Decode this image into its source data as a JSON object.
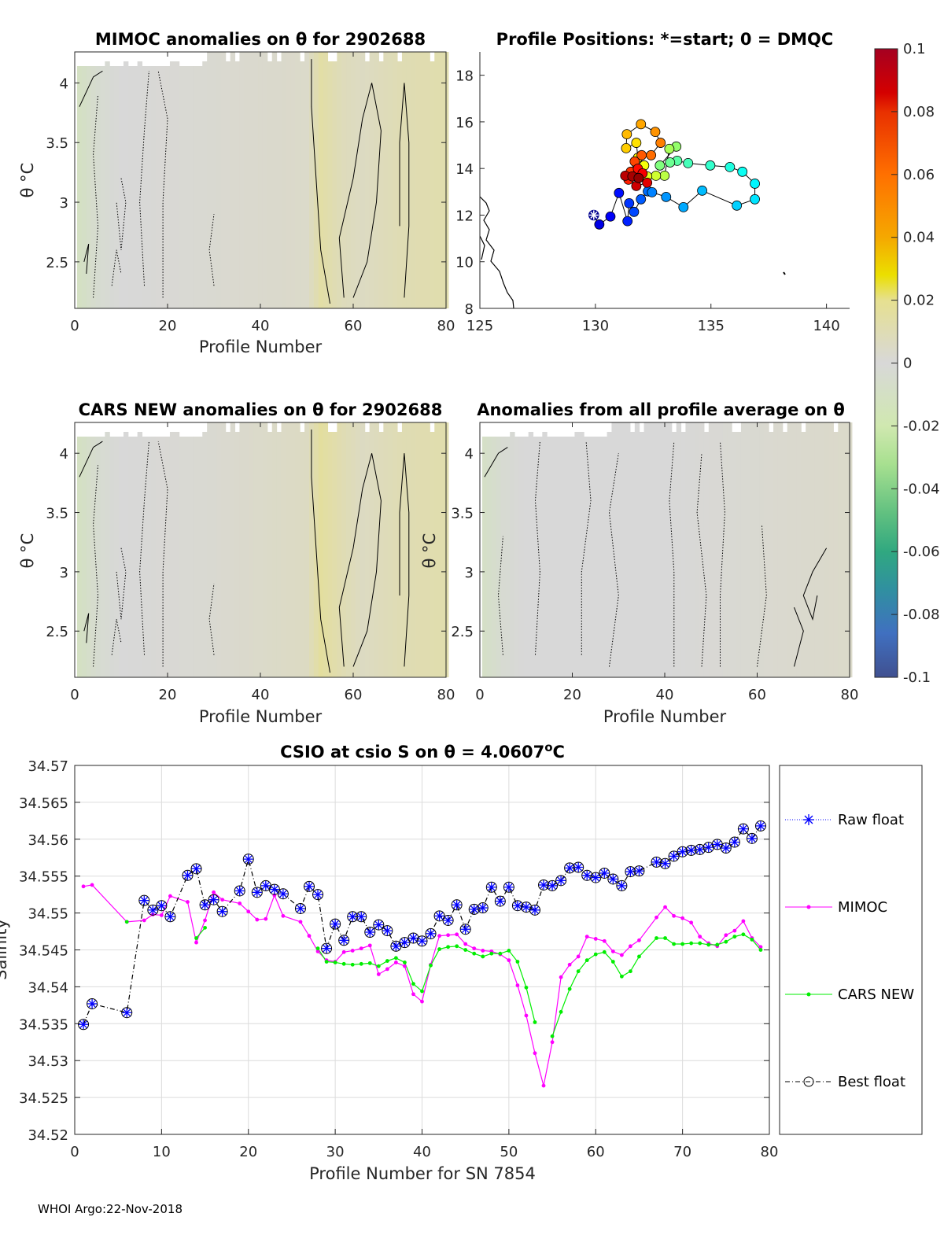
{
  "footer": "WHOI Argo:22-Nov-2018",
  "colors": {
    "mimoc": "#ff00ff",
    "cars": "#00ee00",
    "raw": "#0000ff",
    "best": "#000000"
  },
  "chart_data": [
    {
      "type": "heatmap",
      "title": "MIMOC anomalies on θ  for 2902688",
      "xlabel": "Profile Number",
      "ylabel": "θ °C",
      "xlim": [
        0,
        80
      ],
      "ylim": [
        2.11,
        4.26
      ],
      "xticks": [
        "0",
        "20",
        "40",
        "60",
        "80"
      ],
      "yticks": [
        "2.5",
        "3",
        "3.5",
        "4"
      ],
      "column_anomaly": [
        [
          0,
          -0.012
        ],
        [
          5,
          -0.004
        ],
        [
          10,
          0
        ],
        [
          30,
          0.002
        ],
        [
          50,
          0.004
        ],
        [
          53,
          0.014
        ],
        [
          58,
          0.008
        ],
        [
          62,
          0.006
        ],
        [
          70,
          0.01
        ],
        [
          80,
          0.012
        ]
      ]
    },
    {
      "type": "scatter",
      "title": "Profile Positions: *=start; 0 = DMQC",
      "xlim": [
        125,
        141
      ],
      "ylim": [
        8,
        19
      ],
      "xticks": [
        "125",
        "130",
        "135",
        "140"
      ],
      "yticks": [
        "8",
        "10",
        "12",
        "14",
        "16",
        "18"
      ],
      "lon": [
        129.93,
        130.17,
        130.65,
        131.02,
        131.39,
        131.46,
        131.67,
        131.97,
        132.27,
        132.45,
        133.06,
        133.81,
        134.62,
        136.12,
        136.9,
        136.9,
        136.36,
        135.82,
        134.97,
        134.01,
        133.54,
        133.23,
        132.79,
        133.5,
        133.2,
        132.99,
        132.62,
        132.24,
        132.11,
        131.84,
        131.77,
        131.33,
        131.36,
        131.97,
        132.59,
        132.82,
        132.41,
        132.0,
        131.7,
        131.53,
        131.43,
        131.84,
        132.04,
        132.24,
        131.77,
        131.29,
        131.6,
        131.87
      ],
      "lat": [
        12.0,
        11.6,
        11.94,
        12.95,
        11.74,
        12.51,
        12.14,
        12.68,
        13.02,
        12.98,
        12.78,
        12.34,
        13.05,
        12.41,
        12.68,
        13.35,
        13.86,
        14.06,
        14.13,
        14.23,
        14.33,
        14.26,
        14.13,
        14.94,
        14.84,
        13.69,
        13.69,
        13.66,
        14.13,
        14.46,
        15.1,
        14.87,
        15.47,
        15.9,
        15.57,
        15.1,
        14.57,
        14.57,
        14.3,
        13.86,
        13.52,
        13.99,
        13.79,
        13.39,
        13.25,
        13.69,
        13.66,
        13.59
      ]
    },
    {
      "type": "colorbar",
      "clim": [
        -0.1,
        0.1
      ],
      "ticks": [
        "0.1",
        "0.08",
        "0.06",
        "0.04",
        "0.02",
        "0",
        "-0.02",
        "-0.04",
        "-0.06",
        "-0.08",
        "-0.1"
      ]
    },
    {
      "type": "heatmap",
      "title": "CARS NEW anomalies on θ for 2902688",
      "xlabel": "Profile Number",
      "ylabel": "θ °C",
      "xlim": [
        0,
        80
      ],
      "ylim": [
        2.11,
        4.26
      ],
      "xticks": [
        "0",
        "20",
        "40",
        "60",
        "80"
      ],
      "yticks": [
        "2.5",
        "3",
        "3.5",
        "4"
      ],
      "column_anomaly": [
        [
          0,
          -0.012
        ],
        [
          5,
          -0.004
        ],
        [
          10,
          0
        ],
        [
          30,
          0.002
        ],
        [
          50,
          0.006
        ],
        [
          53,
          0.016
        ],
        [
          58,
          0.01
        ],
        [
          62,
          0.006
        ],
        [
          70,
          0.01
        ],
        [
          80,
          0.012
        ]
      ]
    },
    {
      "type": "heatmap",
      "title": "Anomalies from all profile average on θ",
      "xlabel": "Profile Number",
      "ylabel": "θ °C",
      "xlim": [
        0,
        80
      ],
      "ylim": [
        2.11,
        4.26
      ],
      "xticks": [
        "0",
        "20",
        "40",
        "60",
        "80"
      ],
      "yticks": [
        "2.5",
        "3",
        "3.5",
        "4"
      ],
      "column_anomaly": [
        [
          0,
          -0.01
        ],
        [
          5,
          -0.003
        ],
        [
          10,
          0
        ],
        [
          40,
          0
        ],
        [
          60,
          0.002
        ],
        [
          80,
          0.004
        ]
      ]
    },
    {
      "type": "line",
      "title": "CSIO at csio S on θ = 4.0607",
      "title_sup": "o",
      "title_unit": "C",
      "xlabel": "Profile Number for SN 7854",
      "ylabel": "Salinity",
      "xlim": [
        0,
        80
      ],
      "ylim": [
        34.52,
        34.57
      ],
      "xticks": [
        "0",
        "10",
        "20",
        "30",
        "40",
        "50",
        "60",
        "70",
        "80"
      ],
      "yticks": [
        "34.52",
        "34.525",
        "34.53",
        "34.535",
        "34.54",
        "34.545",
        "34.55",
        "34.555",
        "34.56",
        "34.565",
        "34.57"
      ],
      "grid": true,
      "legend": {
        "placement": "right-outside",
        "entries": [
          "Raw float",
          "MIMOC",
          "CARS NEW",
          "Best float"
        ]
      },
      "x": [
        1,
        2,
        6,
        8,
        9,
        10,
        11,
        13,
        14,
        15,
        16,
        17,
        19,
        20,
        21,
        22,
        23,
        24,
        26,
        27,
        28,
        29,
        30,
        31,
        32,
        33,
        34,
        35,
        36,
        37,
        38,
        39,
        40,
        41,
        42,
        43,
        44,
        45,
        46,
        47,
        48,
        49,
        50,
        51,
        52,
        53,
        54,
        55,
        56,
        57,
        58,
        59,
        60,
        61,
        62,
        63,
        64,
        65,
        67,
        68,
        69,
        70,
        71,
        72,
        73,
        74,
        75,
        76,
        77,
        78,
        79
      ],
      "series": [
        {
          "name": "Raw float / Best float",
          "values": [
            34.5349,
            34.5377,
            34.5365,
            34.5517,
            34.5504,
            34.551,
            34.5495,
            34.5551,
            34.556,
            34.5511,
            34.5518,
            34.5502,
            34.553,
            34.5573,
            34.5528,
            34.5537,
            34.5532,
            34.5526,
            34.5506,
            34.5536,
            34.5525,
            34.5452,
            34.5485,
            34.5463,
            34.5495,
            34.5495,
            34.5474,
            34.5484,
            34.5476,
            34.5455,
            34.546,
            34.5466,
            34.5462,
            34.5472,
            34.5496,
            34.549,
            34.5511,
            34.5478,
            34.5505,
            34.5507,
            34.5535,
            34.5516,
            34.5535,
            34.551,
            34.5508,
            34.5504,
            34.5538,
            34.5537,
            34.5544,
            34.5561,
            34.5562,
            34.5551,
            34.5548,
            34.5554,
            34.5546,
            34.5537,
            34.5556,
            34.5557,
            34.5569,
            34.5567,
            34.5577,
            34.5583,
            34.5585,
            34.5586,
            34.5589,
            34.5593,
            34.5588,
            34.5596,
            34.5614,
            34.5601,
            34.5618
          ]
        },
        {
          "name": "MIMOC",
          "values": [
            34.5536,
            34.5538,
            34.5488,
            34.549,
            34.5498,
            34.5497,
            34.5523,
            34.5515,
            34.546,
            34.549,
            34.5528,
            34.5518,
            34.5513,
            34.5502,
            34.5491,
            34.5492,
            34.5524,
            34.5496,
            34.5488,
            34.5469,
            34.5448,
            34.5436,
            34.5434,
            34.5447,
            34.5449,
            34.5452,
            34.5456,
            34.5417,
            34.5424,
            34.5433,
            34.5428,
            34.539,
            34.538,
            34.543,
            34.5469,
            34.547,
            34.5471,
            34.5458,
            34.5452,
            34.5449,
            34.5448,
            34.5444,
            34.5436,
            34.5402,
            34.5361,
            34.531,
            34.5266,
            34.5325,
            34.5413,
            34.543,
            34.5441,
            34.5468,
            34.5465,
            34.5462,
            34.5448,
            34.5443,
            34.5455,
            34.5463,
            34.5494,
            34.5508,
            34.5496,
            34.5493,
            34.5487,
            34.5468,
            34.5459,
            34.5455,
            34.547,
            34.5476,
            34.5489,
            34.5466,
            34.5454
          ]
        },
        {
          "name": "CARS NEW",
          "values": [
            null,
            null,
            34.5488,
            null,
            null,
            null,
            null,
            null,
            34.5466,
            34.548,
            null,
            null,
            null,
            null,
            null,
            null,
            null,
            null,
            null,
            null,
            34.5452,
            34.5434,
            34.5433,
            34.5431,
            34.543,
            34.5431,
            34.5432,
            34.5428,
            34.5435,
            34.5439,
            34.5433,
            34.5404,
            34.5394,
            34.5429,
            34.5451,
            34.5454,
            34.5455,
            34.545,
            34.5445,
            34.5441,
            34.5445,
            34.5445,
            34.5449,
            34.5434,
            34.5399,
            34.5352,
            null,
            34.5333,
            34.5366,
            34.5397,
            34.5421,
            34.5436,
            34.5444,
            34.5447,
            34.5434,
            34.5414,
            34.5421,
            34.5441,
            34.5466,
            34.5466,
            34.5458,
            34.5458,
            34.5459,
            34.5459,
            34.5457,
            34.5457,
            34.5461,
            34.5468,
            34.5471,
            34.5464,
            34.545
          ]
        }
      ]
    }
  ]
}
